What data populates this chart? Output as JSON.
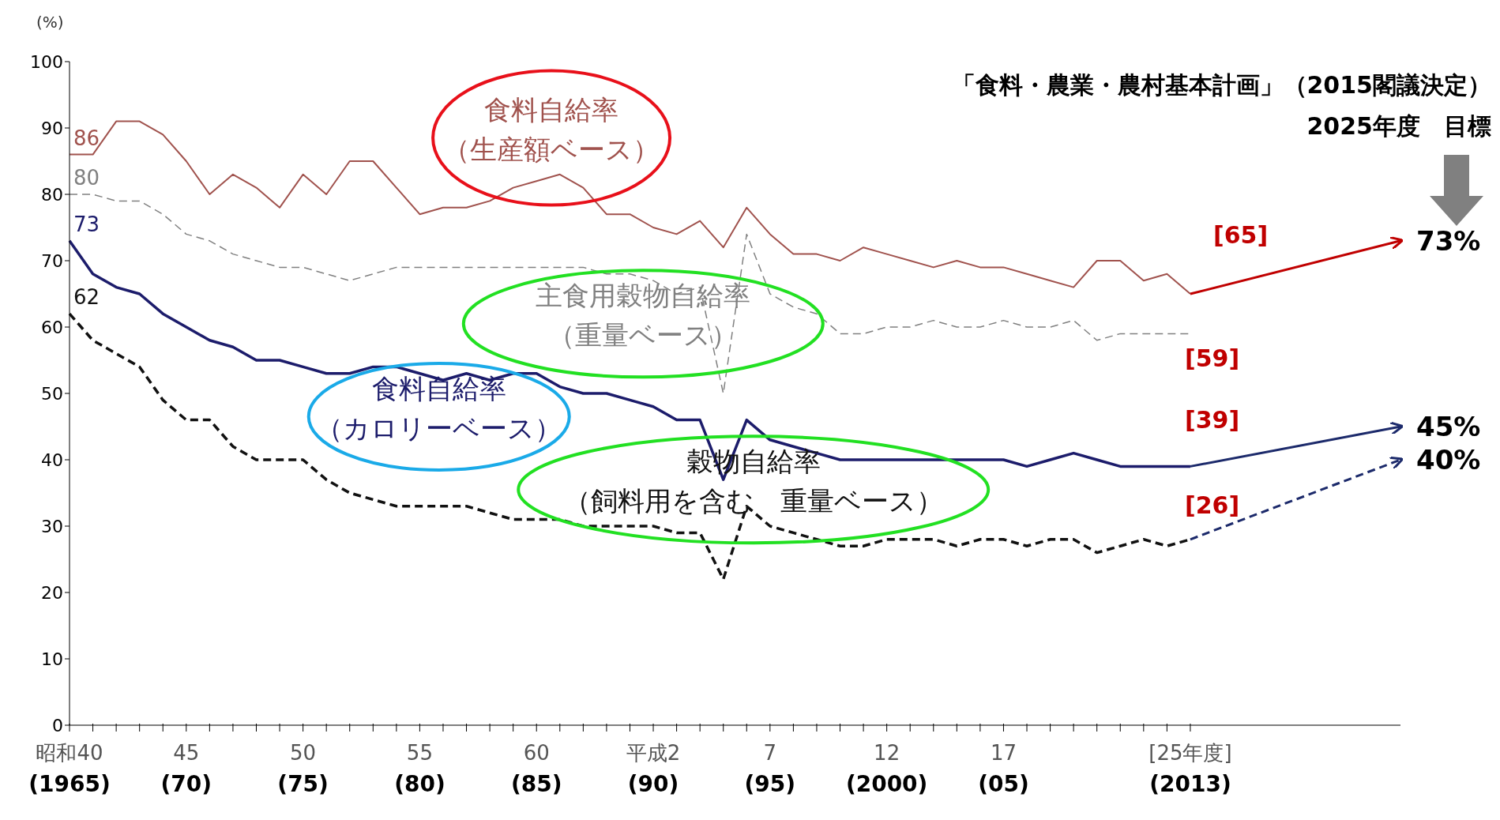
{
  "chart_data": {
    "type": "line",
    "ylabel": "(%)",
    "ylim": [
      0,
      100
    ],
    "yticks": [
      0,
      10,
      20,
      30,
      40,
      50,
      60,
      70,
      80,
      90,
      100
    ],
    "categories": [
      "昭和40(1965)",
      null,
      null,
      null,
      null,
      "45(70)",
      null,
      null,
      null,
      null,
      "50(75)",
      null,
      null,
      null,
      null,
      "55(80)",
      null,
      null,
      null,
      null,
      "60(85)",
      null,
      null,
      null,
      null,
      "平成2(90)",
      null,
      null,
      null,
      null,
      "7(95)",
      null,
      null,
      null,
      null,
      "12(2000)",
      null,
      null,
      null,
      null,
      "17(05)",
      null,
      null,
      null,
      null,
      null,
      null,
      null,
      "[25年度](2013)",
      null,
      null,
      null,
      null,
      null,
      null,
      null,
      null,
      null
    ],
    "grid": false,
    "legend": false,
    "series": [
      {
        "name": "食料自給率（生産額ベース）",
        "color": "#a0524d",
        "line_style": "solid",
        "values": [
          86,
          86,
          91,
          91,
          89,
          85,
          80,
          83,
          81,
          78,
          83,
          80,
          85,
          85,
          81,
          77,
          78,
          78,
          79,
          81,
          82,
          83,
          81,
          77,
          77,
          75,
          74,
          76,
          72,
          78,
          74,
          71,
          71,
          70,
          72,
          71,
          70,
          69,
          70,
          69,
          69,
          68,
          67,
          66,
          70,
          70,
          67,
          68,
          65,
          null,
          null,
          null,
          null,
          null,
          null,
          null,
          null,
          null
        ],
        "value_labels": [
          "86",
          null,
          null,
          null,
          null,
          null,
          null,
          null,
          null,
          null,
          null,
          null,
          null,
          null,
          null,
          null,
          null,
          null,
          null,
          null,
          null,
          null,
          null,
          null,
          null,
          null,
          null,
          null,
          null,
          null,
          null,
          null,
          null,
          null,
          null,
          null,
          null,
          null,
          null,
          null,
          null,
          null,
          null,
          null,
          null,
          null,
          null,
          null,
          null,
          null,
          null,
          null,
          null,
          null,
          null,
          null,
          null,
          null
        ]
      },
      {
        "name": "主食用穀物自給率（重量ベース）",
        "color": "#808080",
        "line_style": "dashed",
        "values": [
          80,
          80,
          79,
          79,
          77,
          74,
          73,
          71,
          70,
          69,
          69,
          68,
          67,
          68,
          69,
          69,
          69,
          69,
          69,
          69,
          69,
          69,
          69,
          68,
          68,
          67,
          65,
          66,
          50,
          74,
          65,
          63,
          62,
          59,
          59,
          60,
          60,
          61,
          60,
          60,
          61,
          60,
          60,
          61,
          58,
          59,
          59,
          59,
          59,
          null,
          null,
          null,
          null,
          null,
          null,
          null,
          null,
          null
        ],
        "value_labels": [
          "80",
          null,
          null,
          null,
          null,
          null,
          null,
          null,
          null,
          null,
          null,
          null,
          null,
          null,
          null,
          null,
          null,
          null,
          null,
          null,
          null,
          null,
          null,
          null,
          null,
          null,
          null,
          null,
          null,
          null,
          null,
          null,
          null,
          null,
          null,
          null,
          null,
          null,
          null,
          null,
          null,
          null,
          null,
          null,
          null,
          null,
          null,
          null,
          null,
          null,
          null,
          null,
          null,
          null,
          null,
          null,
          null,
          null
        ]
      },
      {
        "name": "食料自給率（カロリーベース）",
        "color": "#1c1c6b",
        "line_style": "solid",
        "values": [
          73,
          68,
          66,
          65,
          62,
          60,
          58,
          57,
          55,
          55,
          54,
          53,
          53,
          54,
          54,
          53,
          52,
          53,
          52,
          53,
          53,
          51,
          50,
          50,
          49,
          48,
          46,
          46,
          37,
          46,
          43,
          42,
          41,
          40,
          40,
          40,
          40,
          40,
          40,
          40,
          40,
          39,
          40,
          41,
          40,
          39,
          39,
          39,
          39,
          null,
          null,
          null,
          null,
          null,
          null,
          null,
          null,
          null
        ],
        "value_labels": [
          "73",
          null,
          null,
          null,
          null,
          null,
          null,
          null,
          null,
          null,
          null,
          null,
          null,
          null,
          null,
          null,
          null,
          null,
          null,
          null,
          null,
          null,
          null,
          null,
          null,
          null,
          null,
          null,
          null,
          null,
          null,
          null,
          null,
          null,
          null,
          null,
          null,
          null,
          null,
          null,
          null,
          null,
          null,
          null,
          null,
          null,
          null,
          null,
          null,
          null,
          null,
          null,
          null,
          null,
          null,
          null,
          null,
          null
        ]
      },
      {
        "name": "穀物自給率（飼料用を含む　重量ベース）",
        "color": "#111111",
        "line_style": "dashed",
        "values": [
          62,
          58,
          56,
          54,
          49,
          46,
          46,
          42,
          40,
          40,
          40,
          37,
          35,
          34,
          33,
          33,
          33,
          33,
          32,
          31,
          31,
          31,
          30,
          30,
          30,
          30,
          29,
          29,
          22,
          33,
          30,
          29,
          28,
          27,
          27,
          28,
          28,
          28,
          27,
          28,
          28,
          27,
          28,
          28,
          26,
          27,
          28,
          27,
          28,
          null,
          null,
          null,
          null,
          null,
          null,
          null,
          null,
          null
        ],
        "value_labels": [
          "62",
          null,
          null,
          null,
          null,
          null,
          null,
          null,
          null,
          null,
          null,
          null,
          null,
          null,
          null,
          null,
          null,
          null,
          null,
          null,
          null,
          null,
          null,
          null,
          null,
          null,
          null,
          null,
          null,
          null,
          null,
          null,
          null,
          null,
          null,
          null,
          null,
          null,
          null,
          null,
          null,
          null,
          null,
          null,
          null,
          null,
          null,
          null,
          null,
          null,
          null,
          null,
          null,
          null,
          null,
          null,
          null,
          null
        ]
      },
      {
        "color": "#c00000",
        "line_style": "solid",
        "values": [
          null,
          null,
          null,
          null,
          null,
          null,
          null,
          null,
          null,
          null,
          null,
          null,
          null,
          null,
          null,
          null,
          null,
          null,
          null,
          null,
          null,
          null,
          null,
          null,
          null,
          null,
          null,
          null,
          null,
          null,
          null,
          null,
          null,
          null,
          null,
          null,
          null,
          null,
          null,
          null,
          null,
          null,
          null,
          null,
          null,
          null,
          null,
          null,
          65,
          null,
          null,
          null,
          null,
          null,
          null,
          null,
          null,
          73
        ],
        "value_labels": [
          null,
          null,
          null,
          null,
          null,
          null,
          null,
          null,
          null,
          null,
          null,
          null,
          null,
          null,
          null,
          null,
          null,
          null,
          null,
          null,
          null,
          null,
          null,
          null,
          null,
          null,
          null,
          null,
          null,
          null,
          null,
          null,
          null,
          null,
          null,
          null,
          null,
          null,
          null,
          null,
          null,
          null,
          null,
          null,
          null,
          null,
          null,
          null,
          null,
          null,
          null,
          null,
          null,
          null,
          null,
          null,
          null,
          "73%"
        ]
      },
      {
        "color": "#1c2a6b",
        "line_style": "solid",
        "values": [
          null,
          null,
          null,
          null,
          null,
          null,
          null,
          null,
          null,
          null,
          null,
          null,
          null,
          null,
          null,
          null,
          null,
          null,
          null,
          null,
          null,
          null,
          null,
          null,
          null,
          null,
          null,
          null,
          null,
          null,
          null,
          null,
          null,
          null,
          null,
          null,
          null,
          null,
          null,
          null,
          null,
          null,
          null,
          null,
          null,
          null,
          null,
          null,
          39,
          null,
          null,
          null,
          null,
          null,
          null,
          null,
          null,
          45
        ],
        "value_labels": [
          null,
          null,
          null,
          null,
          null,
          null,
          null,
          null,
          null,
          null,
          null,
          null,
          null,
          null,
          null,
          null,
          null,
          null,
          null,
          null,
          null,
          null,
          null,
          null,
          null,
          null,
          null,
          null,
          null,
          null,
          null,
          null,
          null,
          null,
          null,
          null,
          null,
          null,
          null,
          null,
          null,
          null,
          null,
          null,
          null,
          null,
          null,
          null,
          null,
          null,
          null,
          null,
          null,
          null,
          null,
          null,
          null,
          "45%"
        ]
      },
      {
        "color": "#1c2a6b",
        "line_style": "dashed",
        "values": [
          null,
          null,
          null,
          null,
          null,
          null,
          null,
          null,
          null,
          null,
          null,
          null,
          null,
          null,
          null,
          null,
          null,
          null,
          null,
          null,
          null,
          null,
          null,
          null,
          null,
          null,
          null,
          null,
          null,
          null,
          null,
          null,
          null,
          null,
          null,
          null,
          null,
          null,
          null,
          null,
          null,
          null,
          null,
          null,
          null,
          null,
          null,
          null,
          28,
          null,
          null,
          null,
          null,
          null,
          null,
          null,
          null,
          40
        ],
        "value_labels": [
          null,
          null,
          null,
          null,
          null,
          null,
          null,
          null,
          null,
          null,
          null,
          null,
          null,
          null,
          null,
          null,
          null,
          null,
          null,
          null,
          null,
          null,
          null,
          null,
          null,
          null,
          null,
          null,
          null,
          null,
          null,
          null,
          null,
          null,
          null,
          null,
          null,
          null,
          null,
          null,
          null,
          null,
          null,
          null,
          null,
          null,
          null,
          null,
          null,
          null,
          null,
          null,
          null,
          null,
          null,
          null,
          null,
          "40%"
        ]
      }
    ],
    "annotations": [
      "「食料・農業・農村基本計画」（2015閣議決定）",
      "2025年度　目標",
      "[65]",
      "[59]",
      "[39]",
      "[26]"
    ]
  }
}
